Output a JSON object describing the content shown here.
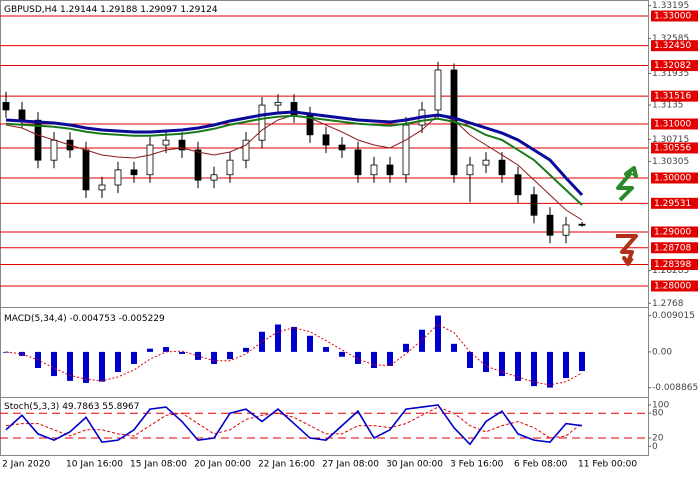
{
  "chart_data": [
    {
      "type": "candlestick",
      "title": "GBPUSD,H4",
      "x": [
        "2 Jan 2020",
        null,
        null,
        null,
        "10 Jan 16:00",
        null,
        null,
        null,
        "15 Jan 08:00",
        null,
        null,
        null,
        "20 Jan 00:00",
        null,
        null,
        null,
        "22 Jan 16:00",
        null,
        null,
        null,
        "27 Jan 08:00",
        null,
        null,
        null,
        "30 Jan 00:00",
        null,
        null,
        null,
        "3 Feb 16:00",
        null,
        null,
        null,
        "6 Feb 08:00",
        null,
        null,
        null,
        "11 Feb 00:00"
      ],
      "open": [
        1.314,
        1.3126,
        1.3107,
        1.3033,
        1.307,
        1.3052,
        1.2978,
        1.2987,
        1.3015,
        1.3006,
        1.3061,
        1.307,
        1.3052,
        1.2996,
        1.3006,
        1.3033,
        1.307,
        1.3135,
        1.314,
        1.3117,
        1.308,
        1.3061,
        1.3052,
        1.3006,
        1.3024,
        1.3006,
        1.3098,
        1.3126,
        1.32,
        1.3006,
        1.3024,
        1.3033,
        1.3006,
        1.2969,
        1.2931,
        1.2894,
        1.29144
      ],
      "high": [
        1.316,
        1.3141,
        1.3122,
        1.3085,
        1.3085,
        1.3067,
        1.3002,
        1.303,
        1.303,
        1.3076,
        1.3085,
        1.3085,
        1.3067,
        1.3021,
        1.3048,
        1.3085,
        1.315,
        1.3155,
        1.3155,
        1.3132,
        1.3095,
        1.3076,
        1.3067,
        1.3039,
        1.3039,
        1.3113,
        1.3141,
        1.3215,
        1.3212,
        1.3039,
        1.3048,
        1.3048,
        1.3021,
        1.2984,
        1.2946,
        1.2928,
        1.29188
      ],
      "low": [
        1.3111,
        1.3092,
        1.3018,
        1.3018,
        1.3037,
        1.2963,
        1.2963,
        1.2972,
        1.2991,
        1.2991,
        1.3046,
        1.3037,
        1.2981,
        1.2981,
        1.2991,
        1.3018,
        1.3055,
        1.312,
        1.3102,
        1.3065,
        1.3046,
        1.3037,
        1.2991,
        1.2991,
        1.2991,
        1.2991,
        1.3083,
        1.3111,
        1.2991,
        1.2955,
        1.3009,
        1.2991,
        1.2954,
        1.2916,
        1.2879,
        1.2879,
        1.29097
      ],
      "close": [
        1.3126,
        1.3107,
        1.3033,
        1.307,
        1.3052,
        1.2978,
        1.2987,
        1.3015,
        1.3006,
        1.3061,
        1.307,
        1.3052,
        1.2996,
        1.3006,
        1.3033,
        1.307,
        1.3135,
        1.314,
        1.3117,
        1.308,
        1.3061,
        1.3052,
        1.3006,
        1.3024,
        1.3006,
        1.3098,
        1.3126,
        1.32,
        1.3006,
        1.3024,
        1.3033,
        1.3006,
        1.2969,
        1.2931,
        1.2894,
        1.2913,
        1.29124
      ],
      "series": [
        {
          "color": "#8b1a1a",
          "values": [
            1.30981,
            1.30926,
            1.30796,
            1.30704,
            1.30611,
            1.30519,
            1.30426,
            1.30389,
            1.3037,
            1.30426,
            1.30519,
            1.30556,
            1.30481,
            1.30426,
            1.30481,
            1.30611,
            1.30889,
            1.31074,
            1.31167,
            1.31111,
            1.30981,
            1.30852,
            1.30704,
            1.30611,
            1.30556,
            1.30704,
            1.30889,
            1.31167,
            1.31074,
            1.30796,
            1.30611,
            1.30426,
            1.30241,
            1.29963,
            1.29685,
            1.29407,
            1.29222
          ]
        },
        {
          "color": "#1a7a1a",
          "values": [
            1.31004,
            1.30986,
            1.30967,
            1.30949,
            1.30911,
            1.30856,
            1.30819,
            1.308,
            1.30782,
            1.30782,
            1.308,
            1.30819,
            1.30856,
            1.30911,
            1.30986,
            1.31041,
            1.31097,
            1.31134,
            1.31152,
            1.31115,
            1.31078,
            1.31041,
            1.31004,
            1.30986,
            1.30967,
            1.31004,
            1.3106,
            1.31097,
            1.31041,
            1.30949,
            1.30796,
            1.30704,
            1.30519,
            1.30333,
            1.30056,
            1.29778,
            1.295
          ]
        },
        {
          "color": "#0a0a9a",
          "values": [
            1.31074,
            1.31056,
            1.31037,
            1.31019,
            1.30981,
            1.30926,
            1.30889,
            1.3087,
            1.30852,
            1.30852,
            1.3087,
            1.30889,
            1.30926,
            1.30981,
            1.31056,
            1.31111,
            1.31167,
            1.31204,
            1.31222,
            1.31185,
            1.31148,
            1.31111,
            1.31074,
            1.31056,
            1.31037,
            1.31074,
            1.3113,
            1.31167,
            1.31111,
            1.31019,
            1.30926,
            1.30833,
            1.30704,
            1.30519,
            1.30333,
            1.3,
            1.29685
          ]
        }
      ],
      "ylim": [
        1.27648,
        1.33259
      ],
      "yticks": [
        1.33195,
        1.32585,
        1.31935,
        1.3135,
        1.30715,
        1.30305,
        1.28285,
        1.2768
      ],
      "levels": [
        {
          "value": 1.33,
          "label": "1.33000"
        },
        {
          "value": 1.3245,
          "label": "1.32450"
        },
        {
          "value": 1.32082,
          "label": "1.32082"
        },
        {
          "value": 1.31516,
          "label": "1.31516"
        },
        {
          "value": 1.31,
          "label": "1.31000"
        },
        {
          "value": 1.30556,
          "label": "1.30556"
        },
        {
          "value": 1.3,
          "label": "1.30000"
        },
        {
          "value": 1.29531,
          "label": "1.29531"
        },
        {
          "value": 1.29,
          "label": "1.29000"
        },
        {
          "value": 1.28708,
          "label": "1.28708"
        },
        {
          "value": 1.28398,
          "label": "1.28398"
        },
        {
          "value": 1.28,
          "label": "1.28000"
        }
      ],
      "level_color": "#e00000"
    },
    {
      "type": "macd",
      "title": "MACD(5,34,4)",
      "color": "#0000cc",
      "signal_color": "#e00000",
      "values": [
        -0.0002,
        -0.001,
        -0.004,
        -0.006,
        -0.0072,
        -0.0077,
        -0.0074,
        -0.005,
        -0.003,
        0.0008,
        0.0012,
        -0.0005,
        -0.002,
        -0.003,
        -0.0018,
        0.001,
        0.005,
        0.0068,
        0.0062,
        0.004,
        0.0012,
        -0.0012,
        -0.003,
        -0.004,
        -0.0035,
        0.002,
        0.0055,
        0.009015,
        0.002,
        -0.004,
        -0.005,
        -0.006,
        -0.0072,
        -0.0085,
        -0.008865,
        -0.0065,
        -0.004753
      ],
      "signal": [
        0,
        -0.0005,
        -0.002,
        -0.004,
        -0.0058,
        -0.0068,
        -0.0072,
        -0.0062,
        -0.0045,
        -0.0018,
        0,
        0.0002,
        -0.001,
        -0.0022,
        -0.0022,
        -0.0005,
        0.0025,
        0.005,
        0.006,
        0.005,
        0.0028,
        0.0005,
        -0.0018,
        -0.0032,
        -0.0034,
        -0.0005,
        0.003,
        0.0068,
        0.0048,
        0,
        -0.0035,
        -0.005,
        -0.0062,
        -0.0075,
        -0.0082,
        -0.0074,
        -0.005229
      ],
      "ylim": [
        -0.0112,
        0.0104
      ],
      "yticks": [
        0.009015,
        {
          "value": 0,
          "label": "0.00"
        },
        -0.008865
      ]
    },
    {
      "type": "stochastic",
      "title": "Stoch(5,3,3)",
      "color": "#0000cc",
      "signal_color": "#e00000",
      "values": [
        40,
        75,
        30,
        15,
        35,
        70,
        10,
        15,
        40,
        90,
        95,
        60,
        15,
        20,
        80,
        90,
        60,
        90,
        55,
        20,
        15,
        50,
        85,
        20,
        40,
        90,
        95,
        100,
        45,
        5,
        60,
        85,
        30,
        15,
        10,
        55,
        49.7863
      ],
      "signal": [
        50,
        55,
        55,
        40,
        25,
        40,
        40,
        30,
        25,
        50,
        75,
        80,
        55,
        30,
        40,
        65,
        75,
        80,
        70,
        50,
        30,
        30,
        50,
        50,
        45,
        55,
        75,
        95,
        80,
        50,
        35,
        50,
        60,
        45,
        20,
        25,
        55.8967
      ],
      "ylim": [
        -21,
        112
      ],
      "yticks": [
        100,
        80,
        20,
        0
      ],
      "levels": [
        80,
        20
      ],
      "level_color": "#e00000"
    }
  ]
}
